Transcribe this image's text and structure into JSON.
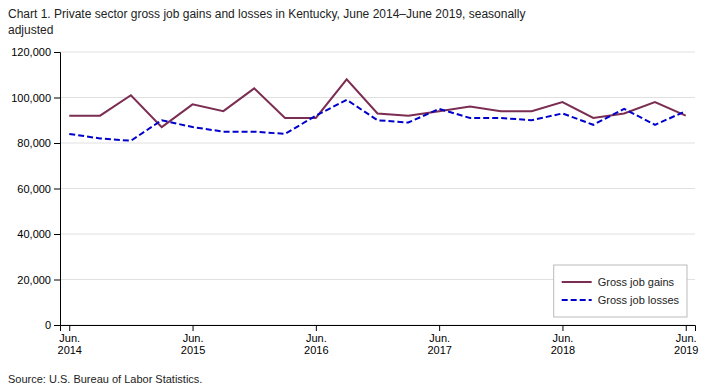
{
  "chart_data": {
    "type": "line",
    "title": "Chart 1. Private sector gross job gains and losses in Kentucky, June 2014–June 2019, seasonally\nadjusted",
    "annotations": [
      "Source: U.S. Bureau of Labor Statistics."
    ],
    "categories": [
      "Jun.\n2014",
      null,
      null,
      null,
      "Jun.\n2015",
      null,
      null,
      null,
      "Jun.\n2016",
      null,
      null,
      null,
      "Jun.\n2017",
      null,
      null,
      null,
      "Jun.\n2018",
      null,
      null,
      null,
      "Jun.\n2019"
    ],
    "series": [
      {
        "name": "Gross job gains",
        "color": "#7b2d52",
        "line_style": "solid",
        "values": [
          92000,
          92000,
          101000,
          87000,
          97000,
          94000,
          104000,
          91000,
          91000,
          108000,
          93000,
          92000,
          94000,
          96000,
          94000,
          94000,
          98000,
          91000,
          93000,
          98000,
          92000
        ]
      },
      {
        "name": "Gross job losses",
        "color": "#0000cc",
        "line_style": "dashed",
        "values": [
          84000,
          82000,
          81000,
          90000,
          87000,
          85000,
          85000,
          84000,
          92000,
          99000,
          90000,
          89000,
          95000,
          91000,
          91000,
          90000,
          93000,
          88000,
          95000,
          88000,
          94000
        ]
      }
    ],
    "ylim": [
      0,
      120000
    ],
    "yticks": [
      0,
      {
        "value": 20000,
        "label": "20,000"
      },
      {
        "value": 40000,
        "label": "40,000"
      },
      {
        "value": 60000,
        "label": "60,000"
      },
      {
        "value": 80000,
        "label": "80,000"
      },
      {
        "value": 100000,
        "label": "100,000"
      },
      {
        "value": 120000,
        "label": "120,000"
      }
    ],
    "grid": true,
    "legend": "lower right"
  }
}
